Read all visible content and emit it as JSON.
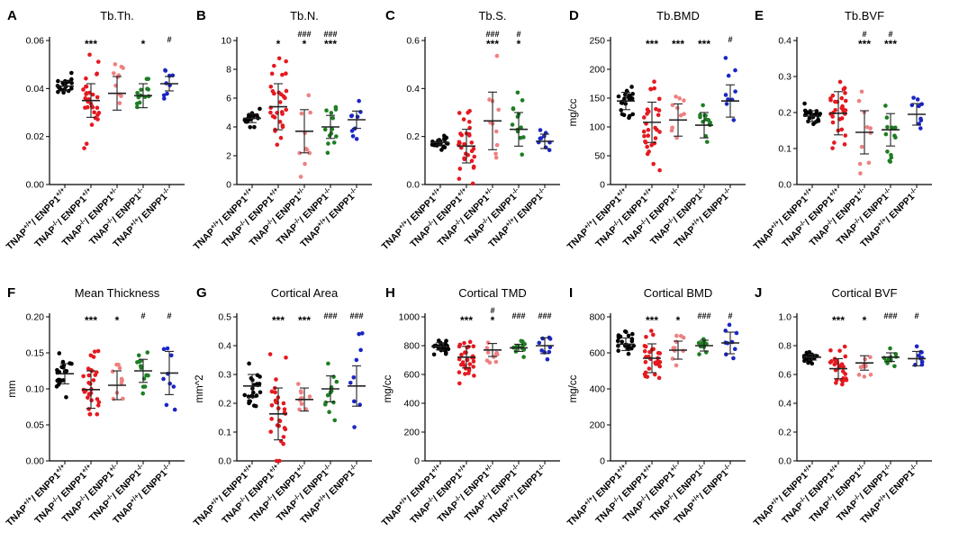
{
  "colors": [
    "#000000",
    "#e5191f",
    "#ef8080",
    "#1e7d23",
    "#1b26c4"
  ],
  "group_labels": [
    {
      "base": "TNAP",
      "s1": "+/+",
      "mid": "/ ENPP1",
      "s2": "+/+"
    },
    {
      "base": "TNAP",
      "s1": "-/-",
      "mid": "/ ENPP1",
      "s2": "+/+"
    },
    {
      "base": "TNAP",
      "s1": "-/-",
      "mid": "/ ENPP1",
      "s2": "+/-"
    },
    {
      "base": "TNAP",
      "s1": "-/-",
      "mid": "/ ENPP1",
      "s2": "-/-"
    },
    {
      "base": "TNAP",
      "s1": "+/+",
      "mid": "/ ENPP1",
      "s2": "-/-"
    }
  ],
  "chart_data": [
    {
      "label": "A",
      "title": "Tb.Th.",
      "ylabel": "",
      "type": "scatter",
      "ylim": [
        0,
        0.06
      ],
      "yticks": [
        "0.00",
        "0.02",
        "0.04",
        "0.06"
      ],
      "n": [
        22,
        30,
        10,
        13,
        9
      ],
      "mean": [
        0.041,
        0.035,
        0.038,
        0.037,
        0.042
      ],
      "sd": [
        0.002,
        0.007,
        0.007,
        0.005,
        0.003
      ],
      "stars": [
        "",
        "***",
        "",
        "*",
        ""
      ],
      "hashes": [
        "",
        "",
        "",
        "",
        "#"
      ]
    },
    {
      "label": "B",
      "title": "Tb.N.",
      "ylabel": "",
      "type": "scatter",
      "ylim": [
        0,
        10
      ],
      "yticks": [
        "0",
        "2",
        "4",
        "6",
        "8",
        "10"
      ],
      "n": [
        22,
        30,
        10,
        13,
        9
      ],
      "mean": [
        4.6,
        5.4,
        3.7,
        4.0,
        4.5
      ],
      "sd": [
        0.3,
        1.6,
        1.5,
        0.8,
        0.6
      ],
      "stars": [
        "",
        "*",
        "*",
        "***",
        ""
      ],
      "hashes": [
        "",
        "",
        "###",
        "###",
        ""
      ]
    },
    {
      "label": "C",
      "title": "Tb.S.",
      "ylabel": "",
      "type": "scatter",
      "ylim": [
        0,
        0.6
      ],
      "yticks": [
        "0.0",
        "0.2",
        "0.4",
        "0.6"
      ],
      "n": [
        22,
        30,
        10,
        13,
        9
      ],
      "mean": [
        0.175,
        0.16,
        0.265,
        0.23,
        0.18
      ],
      "sd": [
        0.01,
        0.07,
        0.12,
        0.07,
        0.03
      ],
      "stars": [
        "",
        "",
        "***",
        "*",
        ""
      ],
      "hashes": [
        "",
        "",
        "###",
        "#",
        ""
      ]
    },
    {
      "label": "D",
      "title": "Tb.BMD",
      "ylabel": "mg/cc",
      "type": "scatter",
      "ylim": [
        0,
        250
      ],
      "yticks": [
        "0",
        "50",
        "100",
        "150",
        "200",
        "250"
      ],
      "n": [
        22,
        30,
        10,
        13,
        9
      ],
      "mean": [
        145,
        108,
        112,
        103,
        145
      ],
      "sd": [
        15,
        35,
        28,
        22,
        28
      ],
      "stars": [
        "",
        "***",
        "***",
        "***",
        ""
      ],
      "hashes": [
        "",
        "",
        "",
        "",
        "#"
      ]
    },
    {
      "label": "E",
      "title": "Tb.BVF",
      "ylabel": "",
      "type": "scatter",
      "ylim": [
        0,
        0.4
      ],
      "yticks": [
        "0.0",
        "0.1",
        "0.2",
        "0.3",
        "0.4"
      ],
      "n": [
        22,
        30,
        10,
        13,
        9
      ],
      "mean": [
        0.19,
        0.198,
        0.145,
        0.152,
        0.195
      ],
      "sd": [
        0.015,
        0.06,
        0.06,
        0.045,
        0.03
      ],
      "stars": [
        "",
        "",
        "***",
        "***",
        ""
      ],
      "hashes": [
        "",
        "",
        "#",
        "#",
        ""
      ]
    },
    {
      "label": "F",
      "title": "Mean Thickness",
      "ylabel": "mm",
      "type": "scatter",
      "ylim": [
        0,
        0.2
      ],
      "yticks": [
        "0.00",
        "0.05",
        "0.10",
        "0.15",
        "0.20"
      ],
      "n": [
        22,
        30,
        10,
        13,
        9
      ],
      "mean": [
        0.121,
        0.099,
        0.105,
        0.125,
        0.122
      ],
      "sd": [
        0.014,
        0.026,
        0.02,
        0.016,
        0.03
      ],
      "stars": [
        "",
        "***",
        "*",
        "",
        ""
      ],
      "hashes": [
        "",
        "",
        "",
        "#",
        "#"
      ]
    },
    {
      "label": "G",
      "title": "Cortical Area",
      "ylabel": "mm^2",
      "type": "scatter",
      "ylim": [
        0,
        0.5
      ],
      "yticks": [
        "0.0",
        "0.1",
        "0.2",
        "0.3",
        "0.4",
        "0.5"
      ],
      "n": [
        22,
        30,
        10,
        13,
        9
      ],
      "mean": [
        0.26,
        0.163,
        0.213,
        0.25,
        0.26
      ],
      "sd": [
        0.04,
        0.09,
        0.04,
        0.045,
        0.07
      ],
      "stars": [
        "",
        "***",
        "***",
        "",
        ""
      ],
      "hashes": [
        "",
        "",
        "",
        "###",
        "###"
      ]
    },
    {
      "label": "H",
      "title": "Cortical TMD",
      "ylabel": "mg/cc",
      "type": "scatter",
      "ylim": [
        0,
        1000
      ],
      "yticks": [
        "0",
        "200",
        "400",
        "600",
        "800",
        "1000"
      ],
      "n": [
        22,
        30,
        10,
        13,
        9
      ],
      "mean": [
        795,
        720,
        770,
        785,
        800
      ],
      "sd": [
        25,
        75,
        45,
        25,
        55
      ],
      "stars": [
        "",
        "***",
        "*",
        "",
        ""
      ],
      "hashes": [
        "",
        "",
        "#",
        "###",
        "###"
      ]
    },
    {
      "label": "I",
      "title": "Cortical BMD",
      "ylabel": "mg/cc",
      "type": "scatter",
      "ylim": [
        0,
        800
      ],
      "yticks": [
        "0",
        "200",
        "400",
        "600",
        "800"
      ],
      "n": [
        22,
        30,
        10,
        13,
        9
      ],
      "mean": [
        648,
        570,
        615,
        640,
        655
      ],
      "sd": [
        35,
        80,
        50,
        30,
        60
      ],
      "stars": [
        "",
        "***",
        "*",
        "",
        ""
      ],
      "hashes": [
        "",
        "",
        "",
        "###",
        "#"
      ]
    },
    {
      "label": "J",
      "title": "Cortical BVF",
      "ylabel": "",
      "type": "scatter",
      "ylim": [
        0,
        1.0
      ],
      "yticks": [
        "0.0",
        "0.2",
        "0.4",
        "0.6",
        "0.8",
        "1.0"
      ],
      "n": [
        22,
        30,
        10,
        13,
        9
      ],
      "mean": [
        0.72,
        0.64,
        0.68,
        0.72,
        0.71
      ],
      "sd": [
        0.02,
        0.07,
        0.05,
        0.03,
        0.05
      ],
      "stars": [
        "",
        "***",
        "*",
        "",
        ""
      ],
      "hashes": [
        "",
        "",
        "",
        "###",
        "#"
      ]
    }
  ]
}
